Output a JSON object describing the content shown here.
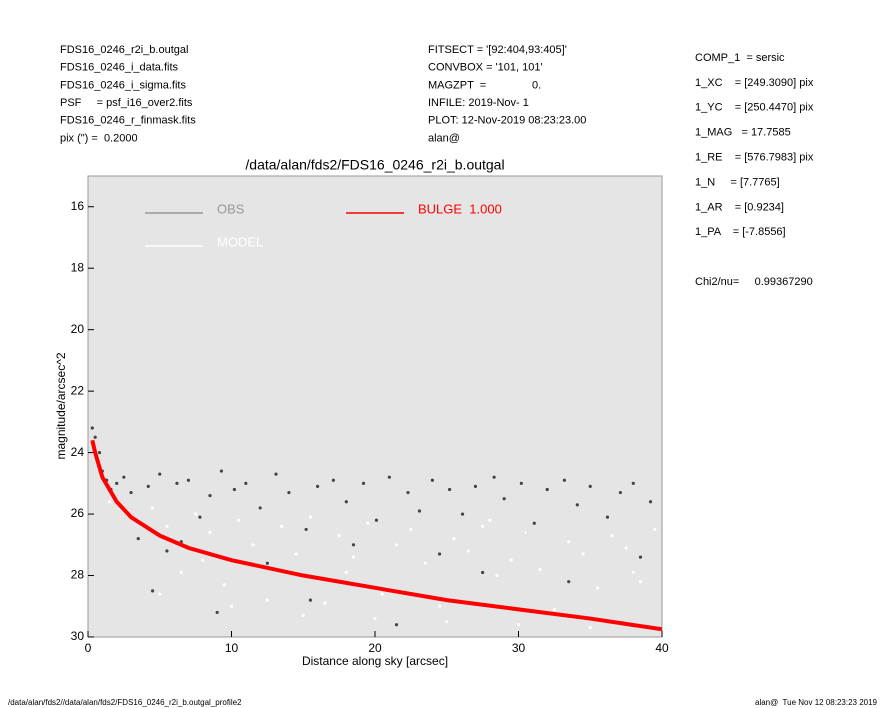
{
  "header": {
    "left": [
      "FDS16_0246_r2i_b.outgal",
      "FDS16_0246_i_data.fits",
      "FDS16_0246_i_sigma.fits",
      "PSF     = psf_i16_over2.fits",
      "FDS16_0246_r_finmask.fits",
      "pix (\") =  0.2000"
    ],
    "middle": [
      "FITSECT = '[92:404,93:405]'",
      "CONVBOX = '101, 101'",
      "MAGZPT  =               0.",
      "INFILE: 2019-Nov- 1",
      "PLOT: 12-Nov-2019 08:23:23.00",
      "alan@"
    ],
    "right": [
      "COMP_1  = sersic",
      "1_XC    = [249.3090] pix",
      "1_YC    = [250.4470] pix",
      "1_MAG   = 17.7585",
      "1_RE    = [576.7983] pix",
      "1_N     = [7.7765]",
      "1_AR    = [0.9234]",
      "1_PA    = [-7.8556]"
    ],
    "chi2": "Chi2/nu=     0.99367290"
  },
  "footer": {
    "left": "/data/alan/fds2//data/alan/fds2/FDS16_0246_r2i_b.outgal_profile2",
    "right": "alan@  Tue Nov 12 08:23:23 2019"
  },
  "chart_data": {
    "type": "scatter",
    "title": "/data/alan/fds2/FDS16_0246_r2i_b.outgal",
    "x_label": "Distance along sky [arcsec]",
    "y_label": "magnitude/arcsec^2",
    "xlim": [
      0,
      40
    ],
    "xticks": [
      0,
      10,
      20,
      30,
      40
    ],
    "ylim": [
      15,
      30
    ],
    "yticks": [
      16,
      18,
      20,
      22,
      24,
      26,
      28,
      30
    ],
    "y_inverted": true,
    "background": "#e5e5e5",
    "series": [
      {
        "name": "OBS",
        "color": "#444444",
        "legend_color": "#999999",
        "x": [
          0.3,
          0.5,
          0.8,
          1.0,
          1.3,
          1.6,
          2.0,
          2.5,
          3.0,
          3.5,
          4.2,
          5.0,
          5.5,
          6.2,
          7.0,
          7.8,
          8.5,
          9.3,
          10.2,
          11.0,
          12.0,
          13.1,
          14.0,
          15.2,
          16.0,
          17.1,
          18.0,
          19.2,
          20.1,
          21.0,
          22.3,
          23.1,
          24.0,
          25.2,
          26.1,
          27.0,
          28.3,
          29.0,
          30.2,
          31.1,
          32.0,
          33.2,
          34.1,
          35.0,
          36.2,
          37.1,
          38.0,
          39.2,
          4.5,
          9.0,
          15.5,
          21.5,
          27.5,
          33.5,
          38.5,
          6.5,
          12.5,
          18.5,
          24.5,
          30.5
        ],
        "values": [
          23.2,
          23.5,
          24.0,
          24.6,
          24.9,
          25.2,
          25.0,
          24.8,
          25.3,
          26.8,
          25.1,
          24.7,
          27.2,
          25.0,
          24.9,
          26.1,
          25.4,
          24.6,
          25.2,
          25.0,
          25.8,
          24.7,
          25.3,
          26.5,
          25.1,
          24.9,
          25.6,
          25.0,
          26.2,
          24.8,
          25.3,
          25.9,
          24.9,
          25.2,
          26.0,
          25.1,
          24.8,
          25.5,
          25.0,
          26.3,
          25.2,
          24.9,
          25.7,
          25.1,
          26.1,
          25.3,
          25.0,
          25.6,
          28.5,
          29.2,
          28.8,
          29.6,
          27.9,
          28.2,
          27.4,
          26.9,
          27.6,
          27.0,
          27.3,
          26.6
        ]
      },
      {
        "name": "MODEL",
        "color": "#ffffff",
        "legend_color": "#ffffff",
        "x": [
          1.5,
          2.5,
          3.5,
          4.5,
          5.5,
          6.5,
          7.5,
          8.5,
          9.5,
          10.5,
          11.5,
          12.5,
          13.5,
          14.5,
          15.5,
          16.5,
          17.5,
          18.5,
          19.5,
          20.5,
          21.5,
          22.5,
          23.5,
          24.5,
          25.5,
          26.5,
          27.5,
          28.5,
          29.5,
          30.5,
          31.5,
          32.5,
          33.5,
          34.5,
          35.5,
          36.5,
          37.5,
          38.5,
          39.5,
          5,
          10,
          15,
          20,
          25,
          30,
          35,
          8,
          18,
          28,
          38
        ],
        "values": [
          25.6,
          25.9,
          26.2,
          25.8,
          26.4,
          27.9,
          26.0,
          26.6,
          28.3,
          26.2,
          27.0,
          28.8,
          26.4,
          27.3,
          26.1,
          28.9,
          26.7,
          27.4,
          26.3,
          28.6,
          27.0,
          26.5,
          27.6,
          29.0,
          26.8,
          27.2,
          26.4,
          28.0,
          27.5,
          26.6,
          27.8,
          29.1,
          26.9,
          27.3,
          28.4,
          26.7,
          27.1,
          28.2,
          26.5,
          28.6,
          29.0,
          29.3,
          29.4,
          29.5,
          29.6,
          29.7,
          27.5,
          27.9,
          26.2,
          27.9
        ]
      },
      {
        "name": "BULGE  1.000",
        "color": "#ff0000",
        "legend_color": "#ff0000",
        "type": "line",
        "x": [
          0.3,
          0.5,
          1,
          2,
          3,
          5,
          7,
          10,
          15,
          20,
          25,
          30,
          35,
          40
        ],
        "values": [
          23.6,
          24.0,
          24.8,
          25.6,
          26.1,
          26.7,
          27.1,
          27.5,
          28.0,
          28.4,
          28.8,
          29.1,
          29.4,
          29.75
        ]
      }
    ]
  }
}
